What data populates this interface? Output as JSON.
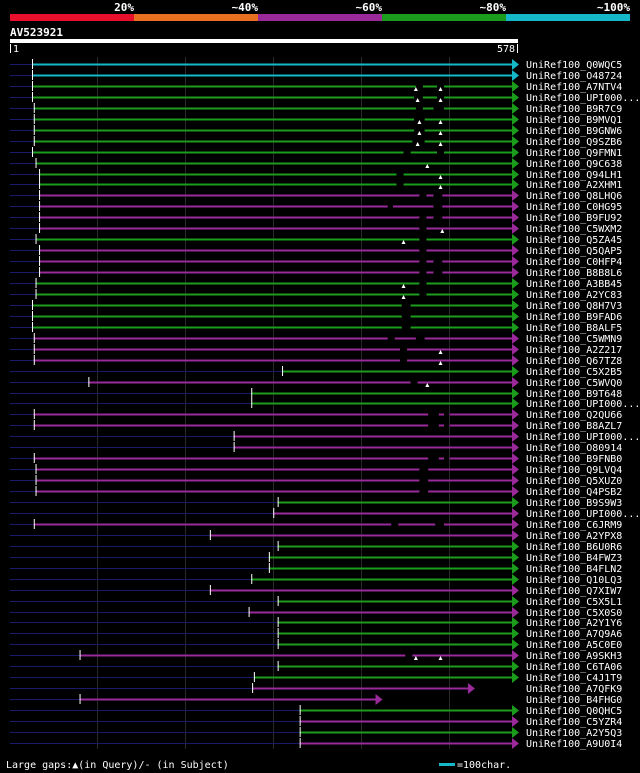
{
  "legend": {
    "pct_labels": [
      "20%",
      "~40%",
      "~60%",
      "~80%",
      "~100%"
    ],
    "colors": [
      "#e8102a",
      "#e87020",
      "#9a2a9a",
      "#1c9c1c",
      "#14b8c8"
    ]
  },
  "query": {
    "id": "AV523921",
    "start": "1",
    "end": "578"
  },
  "footer": {
    "gaps": "Large gaps:▲(in Query)/- (in Subject)",
    "scale": "=100char."
  },
  "chart_data": {
    "type": "alignment",
    "query_length": 578,
    "identity_palette": {
      "purple": "#9a2a9a",
      "green": "#1c9c1c",
      "cyan": "#14b8c8"
    },
    "hits": [
      {
        "name": "UniRef100_Q0WQC5",
        "color": "cyan",
        "start": 26,
        "end": 578,
        "query_gaps": [],
        "subject_gaps": []
      },
      {
        "name": "UniRef100_O48724",
        "color": "cyan",
        "start": 26,
        "end": 578,
        "query_gaps": [],
        "subject_gaps": []
      },
      {
        "name": "UniRef100_A7NTV4",
        "color": "green",
        "start": 26,
        "end": 578,
        "query_gaps": [
          462,
          490
        ],
        "subject_gaps": [
          [
            462,
            470
          ],
          [
            486,
            494
          ]
        ]
      },
      {
        "name": "UniRef100_UPI000...",
        "color": "green",
        "start": 26,
        "end": 578,
        "query_gaps": [
          464,
          490
        ],
        "subject_gaps": [
          [
            460,
            470
          ],
          [
            486,
            494
          ]
        ]
      },
      {
        "name": "UniRef100_B9R7C9",
        "color": "green",
        "start": 28,
        "end": 578,
        "query_gaps": [],
        "subject_gaps": [
          [
            462,
            470
          ],
          [
            482,
            494
          ]
        ]
      },
      {
        "name": "UniRef100_B9MVQ1",
        "color": "green",
        "start": 28,
        "end": 578,
        "query_gaps": [
          466,
          490
        ],
        "subject_gaps": [
          [
            460,
            472
          ]
        ]
      },
      {
        "name": "UniRef100_B9GNW6",
        "color": "green",
        "start": 28,
        "end": 578,
        "query_gaps": [
          466,
          490
        ],
        "subject_gaps": [
          [
            460,
            472
          ]
        ]
      },
      {
        "name": "UniRef100_Q9SZB6",
        "color": "green",
        "start": 28,
        "end": 578,
        "query_gaps": [
          464,
          490
        ],
        "subject_gaps": [
          [
            458,
            472
          ]
        ]
      },
      {
        "name": "UniRef100_Q9FMN1",
        "color": "green",
        "start": 26,
        "end": 578,
        "query_gaps": [],
        "subject_gaps": [
          [
            448,
            456
          ],
          [
            486,
            494
          ]
        ]
      },
      {
        "name": "UniRef100_Q9C638",
        "color": "green",
        "start": 30,
        "end": 578,
        "query_gaps": [
          475
        ],
        "subject_gaps": []
      },
      {
        "name": "UniRef100_Q94LH1",
        "color": "green",
        "start": 34,
        "end": 578,
        "query_gaps": [
          490
        ],
        "subject_gaps": [
          [
            440,
            448
          ]
        ]
      },
      {
        "name": "UniRef100_A2XHM1",
        "color": "green",
        "start": 34,
        "end": 578,
        "query_gaps": [
          490
        ],
        "subject_gaps": [
          [
            440,
            448
          ]
        ]
      },
      {
        "name": "UniRef100_Q8LHQ6",
        "color": "purple",
        "start": 34,
        "end": 578,
        "query_gaps": [],
        "subject_gaps": [
          [
            466,
            474
          ],
          [
            482,
            492
          ]
        ]
      },
      {
        "name": "UniRef100_C0HG95",
        "color": "purple",
        "start": 34,
        "end": 578,
        "query_gaps": [],
        "subject_gaps": [
          [
            430,
            436
          ],
          [
            482,
            492
          ]
        ]
      },
      {
        "name": "UniRef100_B9FU92",
        "color": "purple",
        "start": 34,
        "end": 578,
        "query_gaps": [],
        "subject_gaps": [
          [
            466,
            474
          ],
          [
            482,
            492
          ]
        ]
      },
      {
        "name": "UniRef100_C5WXM2",
        "color": "purple",
        "start": 34,
        "end": 578,
        "query_gaps": [
          492
        ],
        "subject_gaps": [
          [
            466,
            474
          ]
        ]
      },
      {
        "name": "UniRef100_Q5ZA45",
        "color": "green",
        "start": 30,
        "end": 578,
        "query_gaps": [
          448
        ],
        "subject_gaps": [
          [
            466,
            474
          ]
        ]
      },
      {
        "name": "UniRef100_Q5QAP5",
        "color": "purple",
        "start": 34,
        "end": 578,
        "query_gaps": [],
        "subject_gaps": [
          [
            466,
            474
          ]
        ]
      },
      {
        "name": "UniRef100_C0HFP4",
        "color": "purple",
        "start": 34,
        "end": 578,
        "query_gaps": [],
        "subject_gaps": [
          [
            466,
            474
          ],
          [
            482,
            492
          ]
        ]
      },
      {
        "name": "UniRef100_B8B8L6",
        "color": "purple",
        "start": 34,
        "end": 578,
        "query_gaps": [],
        "subject_gaps": [
          [
            466,
            474
          ],
          [
            482,
            492
          ]
        ]
      },
      {
        "name": "UniRef100_A3BB45",
        "color": "green",
        "start": 30,
        "end": 578,
        "query_gaps": [
          448
        ],
        "subject_gaps": [
          [
            466,
            474
          ]
        ]
      },
      {
        "name": "UniRef100_A2YC83",
        "color": "green",
        "start": 30,
        "end": 578,
        "query_gaps": [
          448
        ],
        "subject_gaps": [
          [
            466,
            474
          ]
        ]
      },
      {
        "name": "UniRef100_Q8H7V3",
        "color": "green",
        "start": 26,
        "end": 578,
        "query_gaps": [],
        "subject_gaps": [
          [
            446,
            456
          ]
        ]
      },
      {
        "name": "UniRef100_B9FAD6",
        "color": "green",
        "start": 26,
        "end": 578,
        "query_gaps": [],
        "subject_gaps": [
          [
            446,
            456
          ]
        ]
      },
      {
        "name": "UniRef100_B8ALF5",
        "color": "green",
        "start": 26,
        "end": 578,
        "query_gaps": [],
        "subject_gaps": [
          [
            446,
            456
          ]
        ]
      },
      {
        "name": "UniRef100_C5WMN9",
        "color": "purple",
        "start": 28,
        "end": 578,
        "query_gaps": [],
        "subject_gaps": [
          [
            430,
            438
          ],
          [
            462,
            472
          ]
        ]
      },
      {
        "name": "UniRef100_A2Z217",
        "color": "purple",
        "start": 28,
        "end": 578,
        "query_gaps": [
          490
        ],
        "subject_gaps": [
          [
            444,
            452
          ]
        ]
      },
      {
        "name": "UniRef100_Q67TZ8",
        "color": "purple",
        "start": 28,
        "end": 578,
        "query_gaps": [
          490
        ],
        "subject_gaps": [
          [
            444,
            452
          ]
        ]
      },
      {
        "name": "UniRef100_C5X2B5",
        "color": "green",
        "start": 310,
        "end": 578,
        "query_gaps": [],
        "subject_gaps": []
      },
      {
        "name": "UniRef100_C5WVQ0",
        "color": "purple",
        "start": 90,
        "end": 578,
        "query_gaps": [
          475
        ],
        "subject_gaps": [
          [
            456,
            464
          ]
        ]
      },
      {
        "name": "UniRef100_B9T648",
        "color": "green",
        "start": 275,
        "end": 578,
        "query_gaps": [],
        "subject_gaps": []
      },
      {
        "name": "UniRef100_UPI000...",
        "color": "green",
        "start": 275,
        "end": 578,
        "query_gaps": [],
        "subject_gaps": []
      },
      {
        "name": "UniRef100_Q2QU66",
        "color": "purple",
        "start": 28,
        "end": 578,
        "query_gaps": [],
        "subject_gaps": [
          [
            476,
            488
          ],
          [
            494,
            500
          ]
        ]
      },
      {
        "name": "UniRef100_B8AZL7",
        "color": "purple",
        "start": 28,
        "end": 578,
        "query_gaps": [],
        "subject_gaps": [
          [
            476,
            488
          ],
          [
            494,
            500
          ]
        ]
      },
      {
        "name": "UniRef100_UPI000...",
        "color": "purple",
        "start": 255,
        "end": 578,
        "query_gaps": [],
        "subject_gaps": []
      },
      {
        "name": "UniRef100_O80914",
        "color": "purple",
        "start": 255,
        "end": 578,
        "query_gaps": [],
        "subject_gaps": []
      },
      {
        "name": "UniRef100_B9FNB0",
        "color": "purple",
        "start": 28,
        "end": 578,
        "query_gaps": [],
        "subject_gaps": [
          [
            476,
            488
          ],
          [
            494,
            500
          ]
        ]
      },
      {
        "name": "UniRef100_Q9LVQ4",
        "color": "purple",
        "start": 30,
        "end": 578,
        "query_gaps": [],
        "subject_gaps": [
          [
            466,
            476
          ]
        ]
      },
      {
        "name": "UniRef100_Q5XUZ0",
        "color": "purple",
        "start": 30,
        "end": 578,
        "query_gaps": [],
        "subject_gaps": [
          [
            466,
            476
          ]
        ]
      },
      {
        "name": "UniRef100_Q4PSB2",
        "color": "purple",
        "start": 30,
        "end": 578,
        "query_gaps": [],
        "subject_gaps": [
          [
            466,
            476
          ]
        ]
      },
      {
        "name": "UniRef100_B9S9W3",
        "color": "green",
        "start": 305,
        "end": 578,
        "query_gaps": [],
        "subject_gaps": []
      },
      {
        "name": "UniRef100_UPI000...",
        "color": "purple",
        "start": 300,
        "end": 578,
        "query_gaps": [],
        "subject_gaps": []
      },
      {
        "name": "UniRef100_C6JRM9",
        "color": "purple",
        "start": 28,
        "end": 578,
        "query_gaps": [],
        "subject_gaps": [
          [
            434,
            442
          ],
          [
            484,
            494
          ]
        ]
      },
      {
        "name": "UniRef100_A2YPX8",
        "color": "purple",
        "start": 228,
        "end": 578,
        "query_gaps": [],
        "subject_gaps": []
      },
      {
        "name": "UniRef100_B6U0R6",
        "color": "green",
        "start": 305,
        "end": 578,
        "query_gaps": [],
        "subject_gaps": []
      },
      {
        "name": "UniRef100_B4FWZ3",
        "color": "green",
        "start": 295,
        "end": 578,
        "query_gaps": [],
        "subject_gaps": []
      },
      {
        "name": "UniRef100_B4FLN2",
        "color": "green",
        "start": 295,
        "end": 578,
        "query_gaps": [],
        "subject_gaps": []
      },
      {
        "name": "UniRef100_Q10LQ3",
        "color": "green",
        "start": 275,
        "end": 578,
        "query_gaps": [],
        "subject_gaps": []
      },
      {
        "name": "UniRef100_Q7XIW7",
        "color": "purple",
        "start": 228,
        "end": 578,
        "query_gaps": [],
        "subject_gaps": []
      },
      {
        "name": "UniRef100_C5X5L1",
        "color": "green",
        "start": 305,
        "end": 578,
        "query_gaps": [],
        "subject_gaps": []
      },
      {
        "name": "UniRef100_C5X0S0",
        "color": "purple",
        "start": 272,
        "end": 578,
        "query_gaps": [],
        "subject_gaps": []
      },
      {
        "name": "UniRef100_A2Y1Y6",
        "color": "green",
        "start": 305,
        "end": 578,
        "query_gaps": [],
        "subject_gaps": []
      },
      {
        "name": "UniRef100_A7Q9A6",
        "color": "green",
        "start": 305,
        "end": 578,
        "query_gaps": [],
        "subject_gaps": []
      },
      {
        "name": "UniRef100_A5C0E0",
        "color": "green",
        "start": 305,
        "end": 578,
        "query_gaps": [],
        "subject_gaps": []
      },
      {
        "name": "UniRef100_A9SKH3",
        "color": "purple",
        "start": 80,
        "end": 578,
        "query_gaps": [
          462,
          490
        ],
        "subject_gaps": [
          [
            450,
            458
          ]
        ]
      },
      {
        "name": "UniRef100_C6TA06",
        "color": "green",
        "start": 305,
        "end": 578,
        "query_gaps": [],
        "subject_gaps": []
      },
      {
        "name": "UniRef100_C4J1T9",
        "color": "green",
        "start": 278,
        "end": 578,
        "query_gaps": [],
        "subject_gaps": []
      },
      {
        "name": "UniRef100_A7QFK9",
        "color": "purple",
        "start": 276,
        "end": 528,
        "query_gaps": [],
        "subject_gaps": []
      },
      {
        "name": "UniRef100_B4FHG0",
        "color": "purple",
        "start": 80,
        "end": 423,
        "query_gaps": [],
        "subject_gaps": []
      },
      {
        "name": "UniRef100_Q0QHC5",
        "color": "green",
        "start": 330,
        "end": 578,
        "query_gaps": [],
        "subject_gaps": []
      },
      {
        "name": "UniRef100_C5YZR4",
        "color": "purple",
        "start": 330,
        "end": 578,
        "query_gaps": [],
        "subject_gaps": []
      },
      {
        "name": "UniRef100_A2Y5Q3",
        "color": "green",
        "start": 330,
        "end": 578,
        "query_gaps": [],
        "subject_gaps": []
      },
      {
        "name": "UniRef100_A9U0I4",
        "color": "purple",
        "start": 330,
        "end": 578,
        "query_gaps": [],
        "subject_gaps": []
      }
    ]
  }
}
